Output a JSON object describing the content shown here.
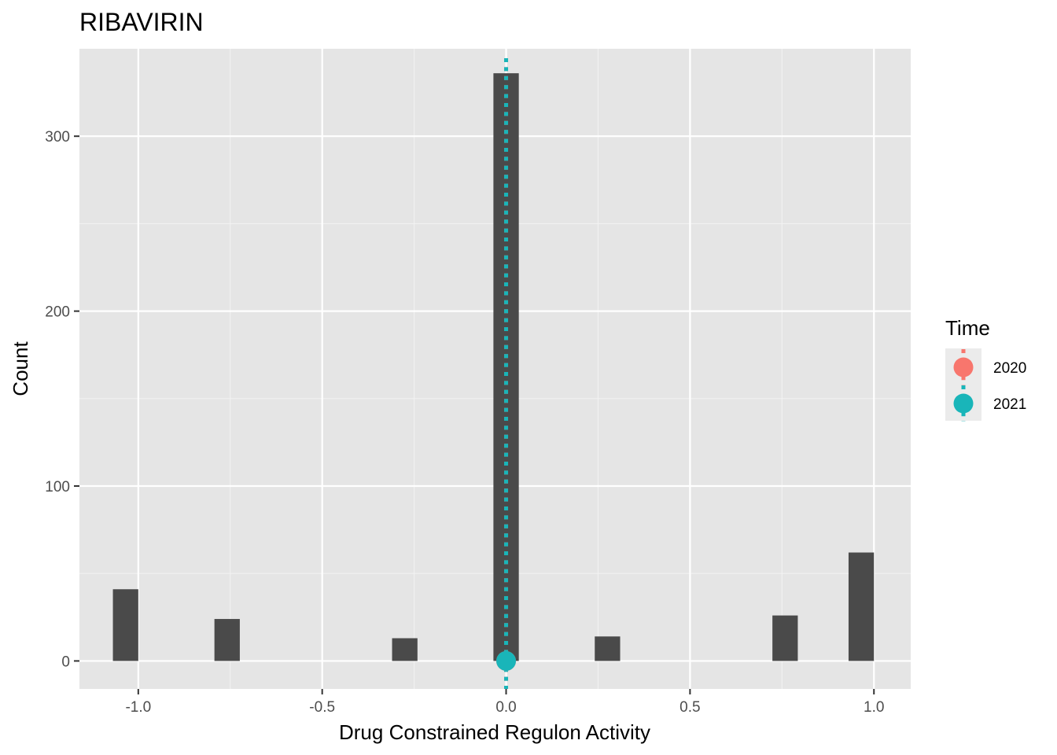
{
  "chart_data": {
    "type": "bar",
    "title": "RIBAVIRIN",
    "xlabel": "Drug Constrained Regulon Activity",
    "ylabel": "Count",
    "xlim": [
      -1.16,
      1.1
    ],
    "ylim": [
      -16,
      350
    ],
    "x_ticks": [
      -1.0,
      -0.5,
      0.0,
      0.5,
      1.0
    ],
    "x_tick_labels": [
      "-1.0",
      "-0.5",
      "0.0",
      "0.5",
      "1.0"
    ],
    "y_ticks": [
      0,
      100,
      200,
      300
    ],
    "y_tick_labels": [
      "0",
      "100",
      "200",
      "300"
    ],
    "bin_width": 0.069,
    "bars": [
      {
        "x": -1.0345,
        "count": 41
      },
      {
        "x": -0.7585,
        "count": 24
      },
      {
        "x": -0.2755,
        "count": 13
      },
      {
        "x": 0.0,
        "count": 336
      },
      {
        "x": 0.2755,
        "count": 14
      },
      {
        "x": 0.7585,
        "count": 26
      },
      {
        "x": 0.9655,
        "count": 62
      }
    ],
    "bar_color": "#4a4a4a",
    "grid": true,
    "panel_background": "#e5e5e5",
    "legend": {
      "title": "Time",
      "position": "right",
      "entries": [
        {
          "label": "2020",
          "color": "#f8766d"
        },
        {
          "label": "2021",
          "color": "#19b5b9"
        }
      ]
    },
    "reference_lines": [
      {
        "series": "2020",
        "x": 0.0,
        "style": "dotted",
        "color": "#f8766d"
      },
      {
        "series": "2021",
        "x": 0.0,
        "style": "dotted",
        "color": "#19b5b9"
      }
    ],
    "points": [
      {
        "series": "2020",
        "x": 0.0,
        "y": 0,
        "color": "#f8766d"
      },
      {
        "series": "2021",
        "x": 0.0,
        "y": 0,
        "color": "#19b5b9"
      }
    ]
  }
}
